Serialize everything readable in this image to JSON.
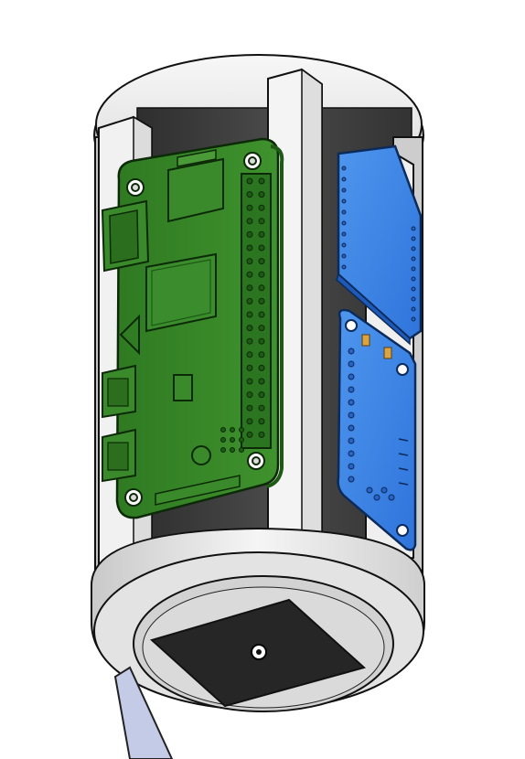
{
  "scene": {
    "subject": "cad-render-cylindrical-enclosure",
    "view": "isometric",
    "background": "#ffffff",
    "components": [
      {
        "name": "cylinder-shell",
        "color": "#e6e6e6"
      },
      {
        "name": "support-pillar",
        "count": 4,
        "color": "#f2f2f2"
      },
      {
        "name": "inner-core",
        "color": "#3c3c3c"
      },
      {
        "name": "raspberry-pi-zero-board",
        "color": "#3d8a2a",
        "header_pins": 40,
        "ports": [
          "mini-hdmi",
          "micro-usb",
          "micro-usb"
        ]
      },
      {
        "name": "blue-module-board",
        "color": "#3a86e8"
      },
      {
        "name": "blue-sensor-breakout-board",
        "color": "#2f72d9"
      },
      {
        "name": "base-sensor-plate",
        "color": "#262626"
      },
      {
        "name": "ribbon-cable",
        "color": "#c4cbe6"
      }
    ]
  }
}
